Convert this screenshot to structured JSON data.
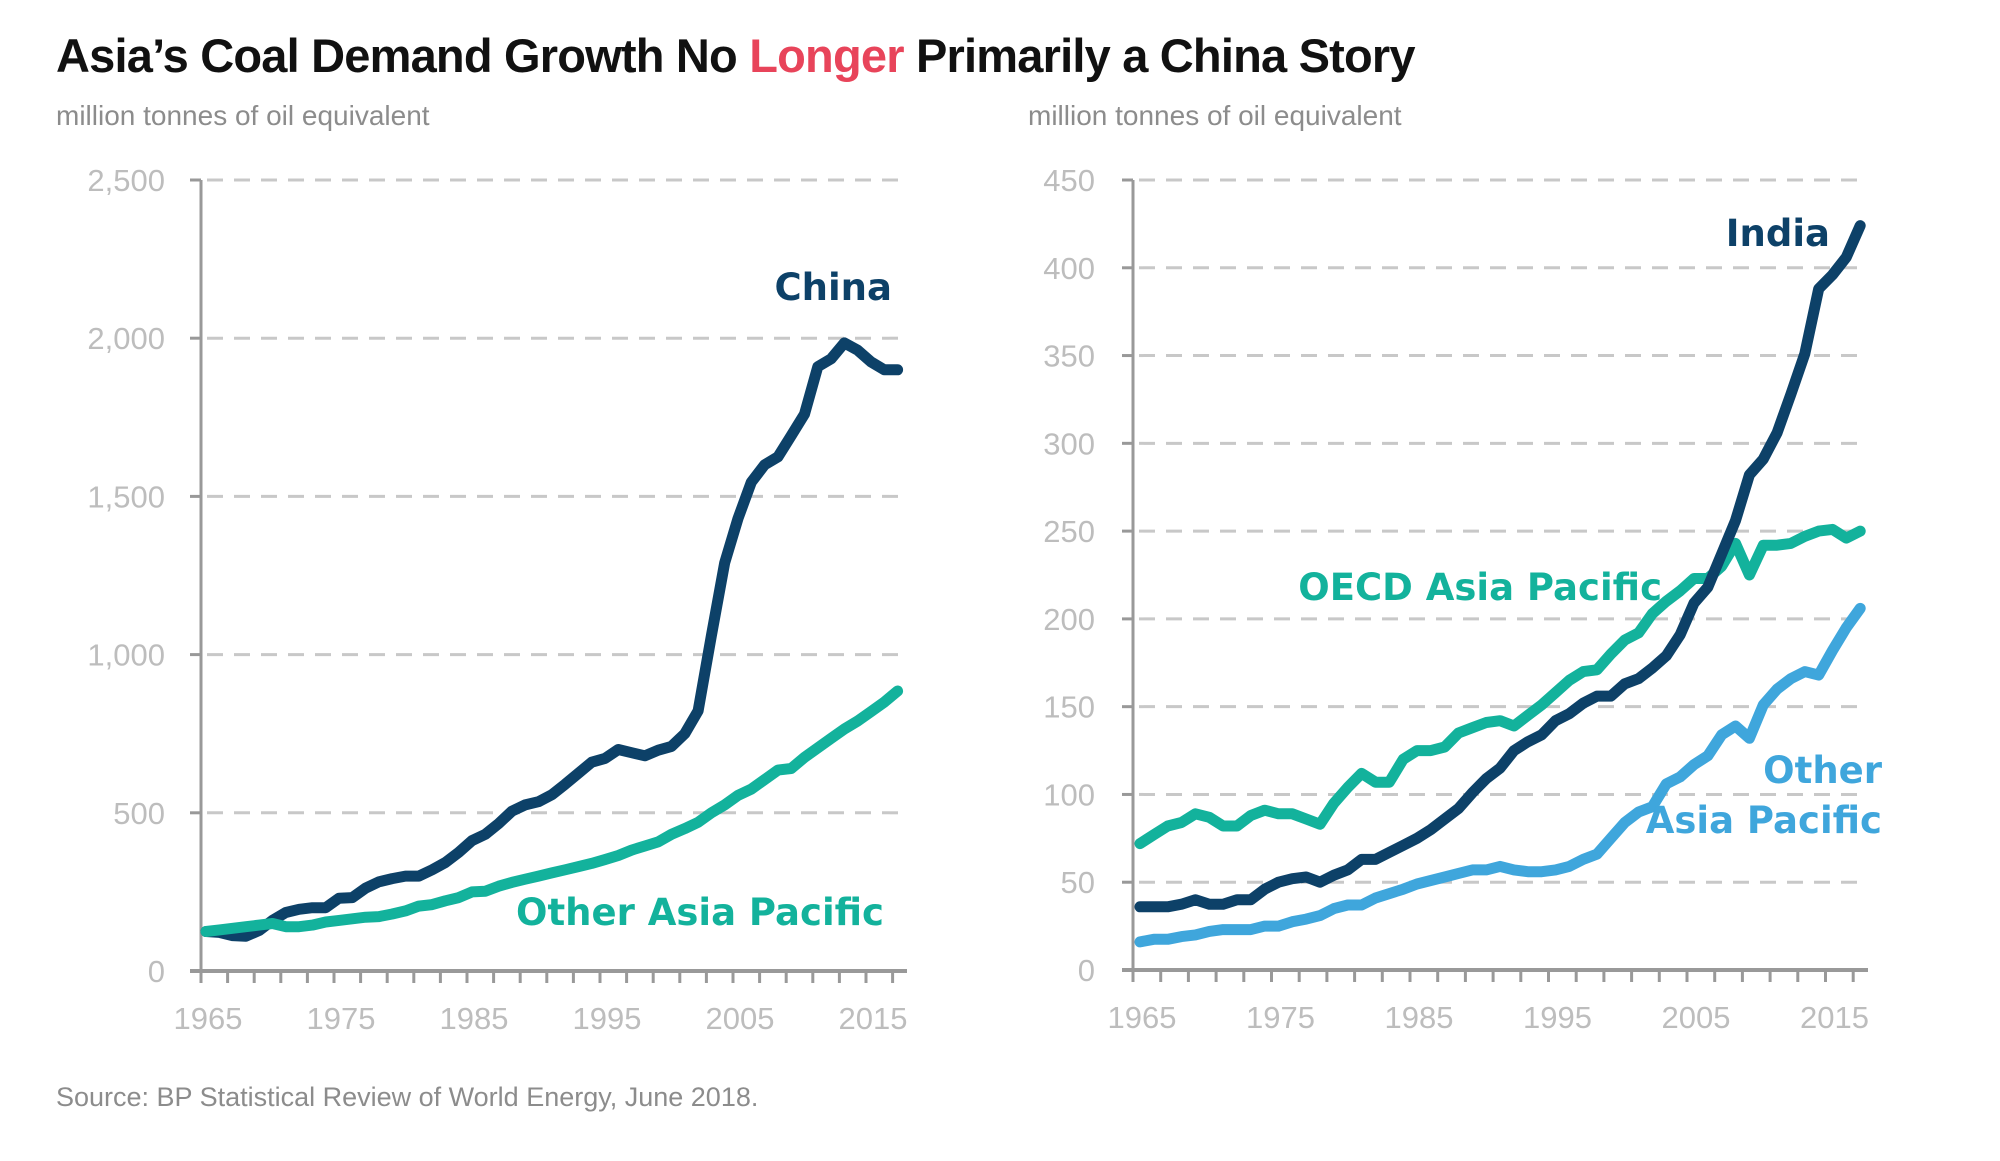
{
  "title": {
    "before": "Asia’s Coal Demand Growth No ",
    "highlight": "Longer",
    "after": " Primarily a China Story",
    "highlight_color": "#e8445a"
  },
  "source": "Source: BP Statistical Review of World Energy, June 2018.",
  "colors": {
    "china": "#0d4168",
    "other_asia_pacific_left": "#13b29c",
    "india": "#0d4168",
    "oecd_asia_pacific": "#13b29c",
    "other_asia_pacific_right": "#3fa6dc",
    "axis": "#999999",
    "grid": "#c8c8c8",
    "tick_text": "#bdbdbd"
  },
  "chart_data": [
    {
      "type": "line",
      "title": "Asia’s Coal Demand Growth No Longer Primarily a China Story",
      "ylabel": "million tonnes of oil equivalent",
      "xlabel": "",
      "x_start": 1965,
      "x_end": 2017,
      "xlim": [
        1965,
        2017
      ],
      "ylim": [
        0,
        2500
      ],
      "yticks": [
        0,
        500,
        1000,
        1500,
        2000,
        2500
      ],
      "ytick_labels": [
        "0",
        "500",
        "1,000",
        "1,500",
        "2,000",
        "2,500"
      ],
      "xtick_labels": [
        "1965",
        "1975",
        "1985",
        "1995",
        "2005",
        "2015"
      ],
      "grid": true,
      "legend": "inline-labels",
      "series": [
        {
          "name": "China",
          "color_key": "china",
          "values": [
            125,
            122,
            112,
            110,
            128,
            160,
            185,
            195,
            200,
            200,
            230,
            232,
            262,
            282,
            292,
            300,
            300,
            320,
            343,
            375,
            412,
            432,
            466,
            505,
            525,
            535,
            557,
            590,
            625,
            660,
            672,
            700,
            690,
            680,
            698,
            710,
            750,
            822,
            1060,
            1290,
            1430,
            1545,
            1600,
            1625,
            1692,
            1760,
            1910,
            1935,
            1985,
            1962,
            1925,
            1900,
            1900
          ]
        },
        {
          "name": "Other Asia Pacific",
          "color_key": "other_asia_pacific_left",
          "values": [
            125,
            130,
            135,
            140,
            145,
            150,
            140,
            140,
            145,
            155,
            160,
            165,
            170,
            172,
            180,
            190,
            205,
            210,
            222,
            232,
            250,
            252,
            268,
            280,
            290,
            300,
            310,
            320,
            330,
            340,
            352,
            365,
            382,
            395,
            408,
            432,
            450,
            470,
            500,
            525,
            555,
            575,
            605,
            635,
            640,
            675,
            705,
            735,
            765,
            790,
            820,
            850,
            885
          ]
        }
      ]
    },
    {
      "type": "line",
      "title": "",
      "ylabel": "million tonnes of oil equivalent",
      "xlabel": "",
      "x_start": 1965,
      "x_end": 2017,
      "xlim": [
        1965,
        2017
      ],
      "ylim": [
        0,
        450
      ],
      "yticks": [
        0,
        50,
        100,
        150,
        200,
        250,
        300,
        350,
        400,
        450
      ],
      "ytick_labels": [
        "0",
        "50",
        "100",
        "150",
        "200",
        "250",
        "300",
        "350",
        "400",
        "450"
      ],
      "xtick_labels": [
        "1965",
        "1975",
        "1985",
        "1995",
        "2005",
        "2015"
      ],
      "grid": true,
      "legend": "inline-labels",
      "series": [
        {
          "name": "OECD Asia Pacific",
          "color_key": "oecd_asia_pacific",
          "values": [
            72,
            77,
            82,
            84,
            89,
            87,
            82,
            82,
            88,
            91,
            89,
            89,
            86,
            83,
            95,
            104,
            112,
            107,
            107,
            120,
            125,
            125,
            127,
            135,
            138,
            141,
            142,
            139,
            145,
            151,
            158,
            165,
            170,
            171,
            180,
            188,
            192,
            203,
            210,
            216,
            223,
            223,
            230,
            243,
            225,
            242,
            242,
            243,
            247,
            250,
            251,
            246,
            250
          ]
        },
        {
          "name": "India",
          "color_key": "india",
          "values": [
            36,
            36,
            36,
            37.5,
            40,
            37.5,
            37.5,
            40,
            40,
            46,
            50,
            52,
            53,
            50,
            54,
            57,
            63,
            63,
            67,
            71,
            75,
            80,
            86,
            92,
            101,
            109,
            115,
            125,
            130,
            134,
            142,
            146,
            152,
            156,
            156,
            163,
            166,
            172,
            179,
            191,
            209,
            218,
            237,
            256,
            282,
            291,
            306,
            328,
            351,
            388,
            396,
            406,
            424
          ]
        },
        {
          "name": "Other Asia Pacific",
          "color_key": "other_asia_pacific_right",
          "label_lines": [
            "Other",
            "Asia Pacific"
          ],
          "values": [
            16,
            17.5,
            17.5,
            19,
            20,
            22,
            23,
            23,
            23,
            25,
            25,
            27.5,
            29,
            31,
            35,
            37,
            37,
            41,
            43.5,
            46,
            49,
            51,
            53,
            55,
            57,
            57,
            59,
            57,
            56,
            56,
            57,
            59,
            63,
            66,
            75,
            84,
            90,
            93,
            106,
            110,
            117,
            122,
            134,
            139,
            132,
            151,
            160,
            166,
            170,
            168,
            182,
            195,
            206
          ]
        }
      ]
    }
  ]
}
